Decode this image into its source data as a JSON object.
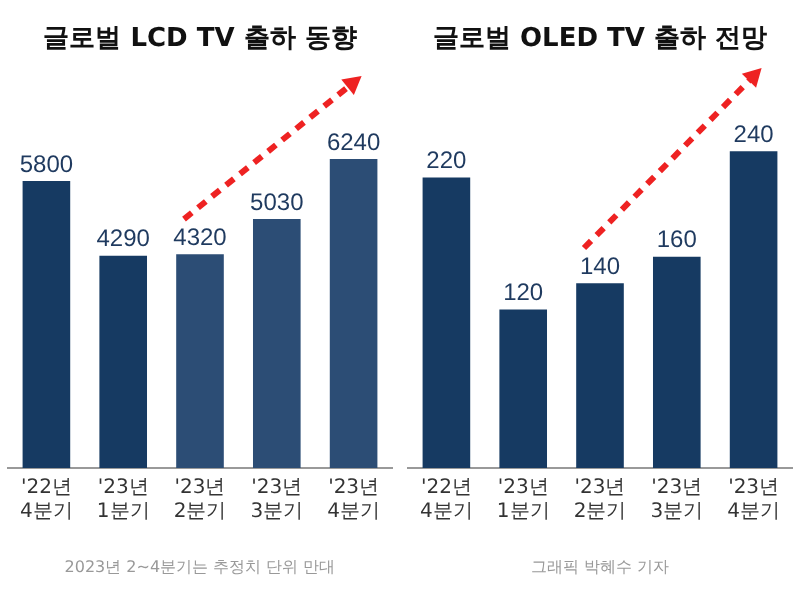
{
  "chart_data": [
    {
      "type": "bar",
      "title": "글로벌 LCD TV 출하 동향",
      "categories": [
        "'22년\n4분기",
        "'23년\n1분기",
        "'23년\n2분기",
        "'23년\n3분기",
        "'23년\n4분기"
      ],
      "values": [
        5800,
        4290,
        4320,
        5030,
        6240
      ],
      "colors": [
        "#163a62",
        "#163a62",
        "#2c4d75",
        "#2c4d75",
        "#2c4d75"
      ],
      "data_labels": true,
      "grid": false,
      "legend": false,
      "tick_labels": "x",
      "annotations": [
        "2023년 2~4분기는 추정치",
        "단위 만대"
      ]
    },
    {
      "type": "bar",
      "title": "글로벌 OLED TV 출하 전망",
      "categories": [
        "'22년\n4분기",
        "'23년\n1분기",
        "'23년\n2분기",
        "'23년\n3분기",
        "'23년\n4분기"
      ],
      "values": [
        220,
        120,
        140,
        160,
        240
      ],
      "colors": [
        "#163a62",
        "#163a62",
        "#163a62",
        "#163a62",
        "#163a62"
      ],
      "data_labels": true,
      "grid": false,
      "legend": false,
      "tick_labels": "x",
      "annotations": [
        "그래픽 박혜수 기자"
      ]
    }
  ]
}
